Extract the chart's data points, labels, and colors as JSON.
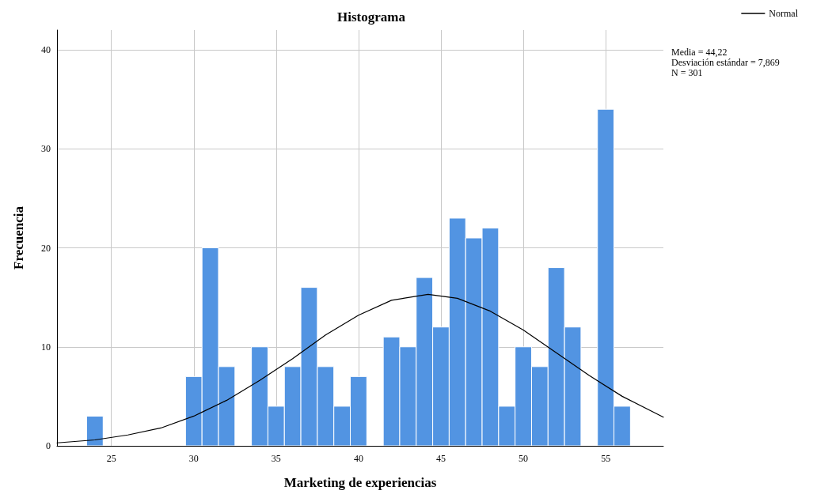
{
  "chart_data": {
    "type": "histogram",
    "title": "Histograma",
    "xlabel": "Marketing de experiencias",
    "ylabel": "Frecuencia",
    "bins": [
      23.5,
      24.5,
      25.5,
      26.5,
      27.5,
      28.5,
      29.5,
      30.5,
      31.5,
      32.5,
      33.5,
      34.5,
      35.5,
      36.5,
      37.5,
      38.5,
      39.5,
      40.5,
      41.5,
      42.5,
      43.5,
      44.5,
      45.5,
      46.5,
      47.5,
      48.5,
      49.5,
      50.5,
      51.5,
      52.5,
      53.5,
      54.5,
      55.5,
      56.5
    ],
    "series": [
      {
        "color": "#5294e2",
        "values": [
          3,
          0,
          0,
          0,
          0,
          0,
          7,
          20,
          8,
          0,
          10,
          4,
          8,
          16,
          8,
          4,
          7,
          0,
          11,
          10,
          17,
          12,
          23,
          21,
          22,
          4,
          10,
          8,
          18,
          12,
          0,
          34,
          4
        ]
      },
      {
        "type": "line",
        "name": "Normal",
        "color": "#000000",
        "x": [
          21.7,
          24,
          26,
          28,
          30,
          32,
          34,
          36,
          38,
          40,
          42,
          44.22,
          46,
          48,
          50,
          52,
          54,
          56,
          58.5
        ],
        "values": [
          0.3,
          0.6,
          1.1,
          1.8,
          3.0,
          4.6,
          6.6,
          8.8,
          11.2,
          13.2,
          14.7,
          15.3,
          14.9,
          13.6,
          11.7,
          9.4,
          7.1,
          5.0,
          2.9
        ]
      }
    ],
    "xlim": [
      21.7,
      58.5
    ],
    "xticks": [
      25,
      30,
      35,
      40,
      45,
      50,
      55
    ],
    "ylim": [
      0,
      42
    ],
    "yticks": [
      0,
      10,
      20,
      30,
      40
    ],
    "grid": true,
    "legend": "top right",
    "marker": "none",
    "line_style": "solid",
    "annotations": [
      "Media = 44,22",
      "Desviación estándar = 7,869",
      "N = 301"
    ]
  }
}
